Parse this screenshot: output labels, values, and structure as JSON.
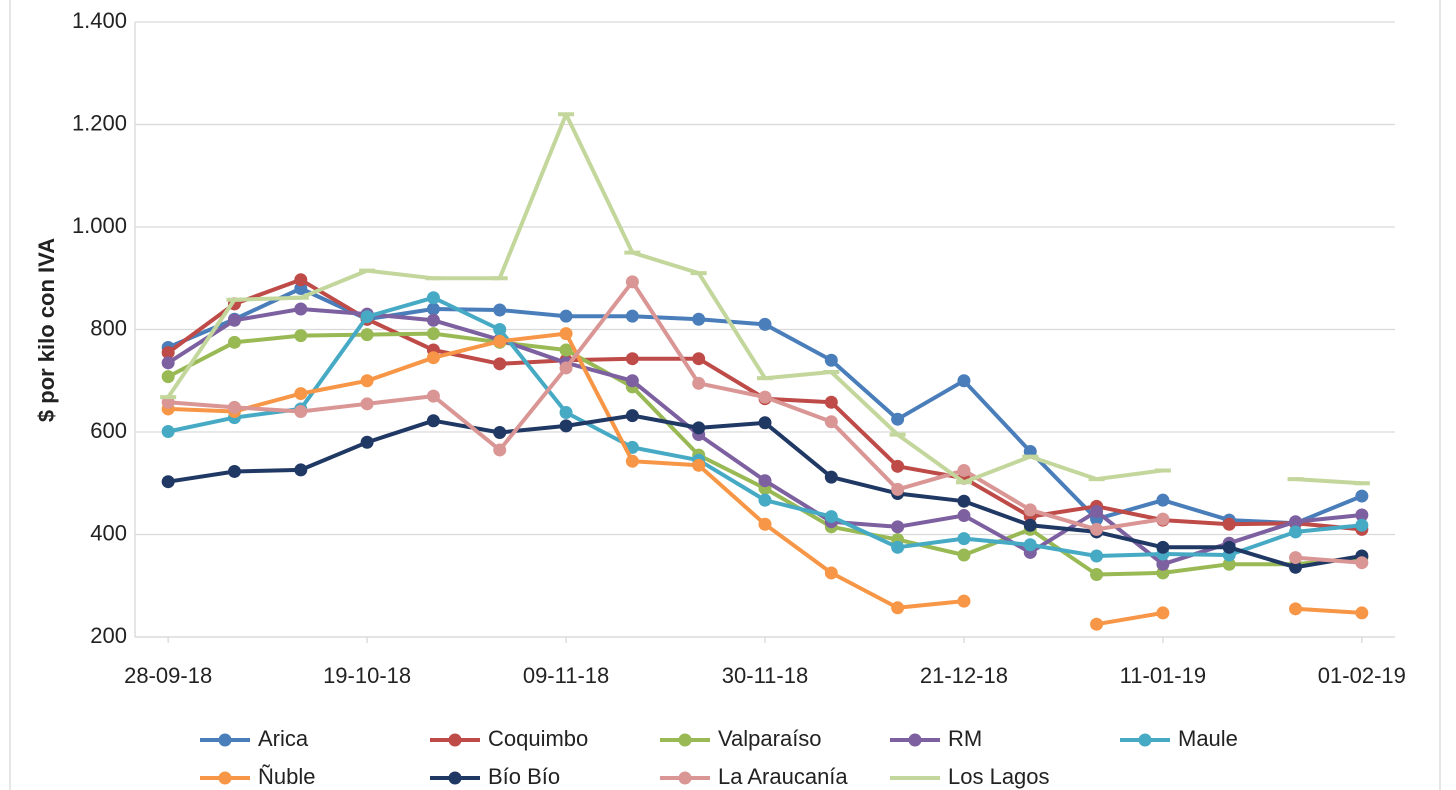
{
  "chart_data": {
    "type": "line",
    "y_label": "$ por kilo con IVA",
    "categories": [
      "28-09-18",
      null,
      null,
      "19-10-18",
      null,
      null,
      "09-11-18",
      null,
      null,
      "30-11-18",
      null,
      null,
      "21-12-18",
      null,
      null,
      "11-01-19",
      null,
      null,
      "01-02-19"
    ],
    "ylim": [
      200,
      1400
    ],
    "yticks": [
      200,
      400,
      600,
      800,
      {
        "value": 1000,
        "label": "1.000"
      },
      {
        "value": 1200,
        "label": "1.200"
      },
      {
        "value": 1400,
        "label": "1.400"
      }
    ],
    "grid": true,
    "legend": "bottom",
    "series": [
      {
        "name": "Arica",
        "color": "#4a7ebb",
        "marker": "circle",
        "values": [
          765,
          820,
          880,
          820,
          840,
          838,
          826,
          826,
          820,
          810,
          740,
          625,
          700,
          562,
          430,
          467,
          428,
          422,
          475
        ]
      },
      {
        "name": "Coquimbo",
        "color": "#be4b48",
        "marker": "circle",
        "values": [
          755,
          850,
          897,
          820,
          760,
          733,
          740,
          743,
          743,
          665,
          658,
          533,
          510,
          435,
          455,
          428,
          420,
          422,
          410
        ]
      },
      {
        "name": "Valparaíso",
        "color": "#98b954",
        "marker": "circle",
        "values": [
          708,
          775,
          788,
          790,
          792,
          775,
          760,
          688,
          555,
          490,
          415,
          390,
          360,
          410,
          322,
          325,
          342,
          342,
          355
        ]
      },
      {
        "name": "RM",
        "color": "#7d60a0",
        "marker": "circle",
        "values": [
          735,
          818,
          840,
          830,
          818,
          780,
          735,
          700,
          595,
          505,
          425,
          415,
          437,
          365,
          445,
          342,
          383,
          425,
          438
        ]
      },
      {
        "name": "Maule",
        "color": "#46aac5",
        "marker": "circle",
        "values": [
          601,
          628,
          645,
          825,
          862,
          800,
          638,
          570,
          545,
          467,
          435,
          375,
          392,
          380,
          358,
          362,
          360,
          405,
          418
        ]
      },
      {
        "name": "Ñuble",
        "color": "#f79646",
        "marker": "circle",
        "values": [
          645,
          640,
          675,
          700,
          745,
          777,
          792,
          543,
          535,
          420,
          325,
          257,
          270,
          null,
          225,
          247,
          null,
          255,
          247
        ]
      },
      {
        "name": "Bío Bío",
        "color": "#203864",
        "marker": "circle",
        "values": [
          503,
          523,
          526,
          580,
          622,
          599,
          612,
          632,
          608,
          618,
          512,
          480,
          465,
          418,
          405,
          375,
          375,
          336,
          358
        ]
      },
      {
        "name": "La Araucanía",
        "color": "#d99694",
        "marker": "circle",
        "values": [
          658,
          648,
          640,
          655,
          670,
          565,
          725,
          893,
          695,
          668,
          620,
          488,
          525,
          448,
          410,
          430,
          null,
          355,
          345
        ]
      },
      {
        "name": "Los Lagos",
        "color": "#c3d69b",
        "marker": "dash",
        "values": [
          668,
          858,
          862,
          915,
          900,
          900,
          1220,
          950,
          910,
          705,
          717,
          595,
          502,
          552,
          508,
          525,
          null,
          508,
          500
        ]
      }
    ]
  }
}
